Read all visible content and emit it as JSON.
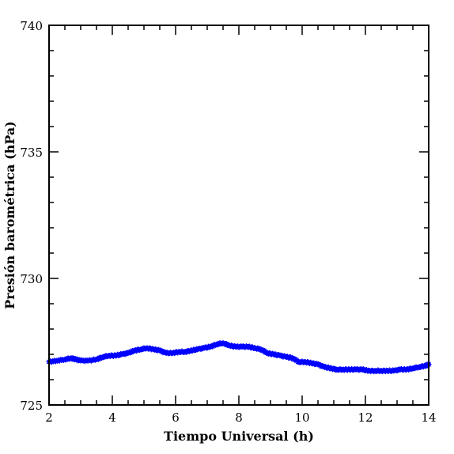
{
  "chart_data": {
    "type": "scatter",
    "title": "",
    "xlabel": "Tiempo Universal (h)",
    "ylabel": "Presión barométrica (hPa)",
    "xlim": [
      2,
      14
    ],
    "ylim": [
      725,
      740
    ],
    "x_major_ticks": [
      2,
      4,
      6,
      8,
      10,
      12,
      14
    ],
    "x_tick_labels": [
      "2",
      "4",
      "6",
      "8",
      "10",
      "12",
      "14"
    ],
    "y_major_ticks": [
      725,
      730,
      735,
      740
    ],
    "y_tick_labels": [
      "725",
      "730",
      "735",
      "740"
    ],
    "x_minor_step": 0.5,
    "y_minor_step": 1,
    "grid": false,
    "series": [
      {
        "marker_color": "#0000ff",
        "marker": "star",
        "x": [
          2.0,
          2.25,
          2.5,
          2.7,
          2.85,
          3.0,
          3.25,
          3.5,
          3.7,
          3.9,
          4.1,
          4.3,
          4.5,
          4.7,
          4.9,
          5.1,
          5.3,
          5.5,
          5.7,
          5.9,
          6.1,
          6.3,
          6.5,
          6.7,
          6.9,
          7.1,
          7.3,
          7.5,
          7.7,
          7.9,
          8.1,
          8.3,
          8.5,
          8.7,
          8.9,
          9.1,
          9.3,
          9.5,
          9.7,
          9.9,
          10.1,
          10.3,
          10.5,
          10.7,
          10.9,
          11.1,
          11.3,
          11.5,
          11.7,
          11.9,
          12.1,
          12.3,
          12.5,
          12.7,
          12.9,
          13.1,
          13.3,
          13.5,
          13.7,
          13.9,
          14.0
        ],
        "y": [
          726.7,
          726.75,
          726.8,
          726.85,
          726.8,
          726.75,
          726.75,
          726.8,
          726.9,
          726.95,
          726.95,
          727.0,
          727.05,
          727.15,
          727.2,
          727.25,
          727.2,
          727.15,
          727.05,
          727.05,
          727.1,
          727.1,
          727.15,
          727.2,
          727.25,
          727.3,
          727.4,
          727.45,
          727.35,
          727.3,
          727.3,
          727.3,
          727.25,
          727.2,
          727.05,
          727.0,
          726.95,
          726.9,
          726.85,
          726.7,
          726.7,
          726.65,
          726.6,
          726.5,
          726.45,
          726.4,
          726.4,
          726.4,
          726.4,
          726.4,
          726.35,
          726.35,
          726.35,
          726.35,
          726.35,
          726.4,
          726.4,
          726.45,
          726.5,
          726.55,
          726.6
        ]
      }
    ]
  }
}
